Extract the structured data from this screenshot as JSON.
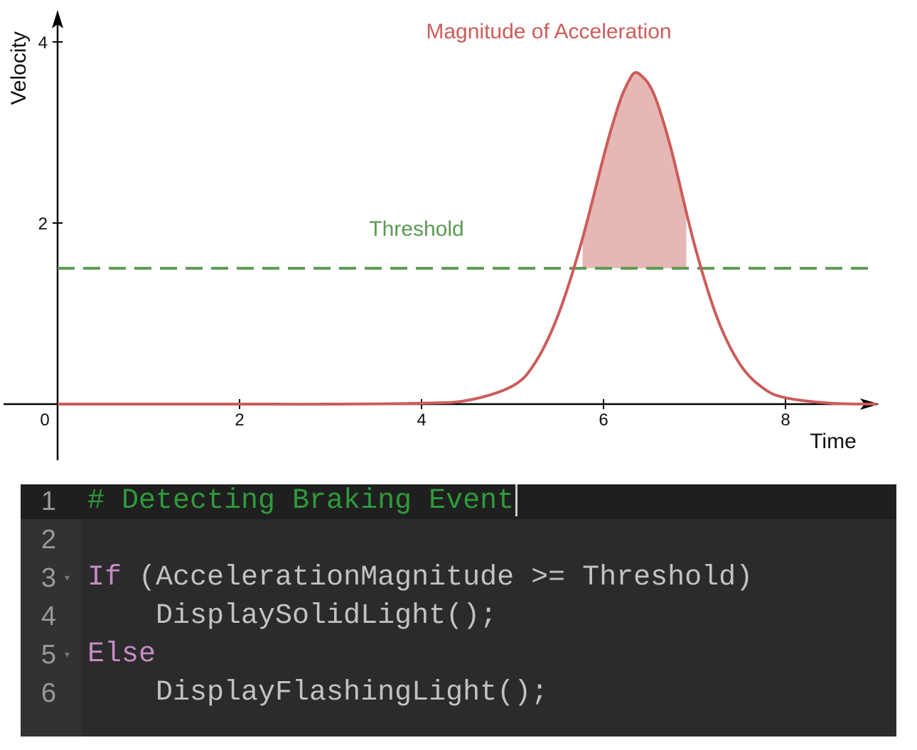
{
  "chart_data": {
    "type": "line",
    "title": "Magnitude of Acceleration",
    "xlabel": "Time",
    "ylabel": "Velocity",
    "xlim": [
      0,
      9
    ],
    "ylim": [
      -0.6,
      4.3
    ],
    "x_ticks": [
      "2",
      "4",
      "6",
      "8"
    ],
    "y_ticks": [
      "2",
      "4"
    ],
    "origin_label": "0",
    "series": [
      {
        "name": "Magnitude of Acceleration",
        "color": "#cc5c5a",
        "x": [
          0,
          1,
          2,
          3,
          4,
          4.5,
          5,
          5.25,
          5.5,
          5.75,
          6,
          6.1,
          6.2,
          6.3,
          6.35,
          6.4,
          6.5,
          6.6,
          6.75,
          7,
          7.25,
          7.5,
          7.75,
          8,
          8.5,
          9
        ],
        "y": [
          0,
          0,
          0,
          0,
          0.01,
          0.04,
          0.2,
          0.46,
          0.98,
          1.76,
          2.73,
          3.09,
          3.4,
          3.61,
          3.66,
          3.64,
          3.53,
          3.3,
          2.79,
          1.76,
          0.95,
          0.44,
          0.18,
          0.07,
          0.01,
          0
        ]
      }
    ],
    "threshold": {
      "label": "Threshold",
      "value": 1.5,
      "color": "#5a9a52"
    },
    "shaded_region": {
      "description_color": "#e5b7b5",
      "x_from": 5.77,
      "x_to": 6.91
    }
  },
  "editor": {
    "lines": [
      {
        "num": "1",
        "fold": "",
        "tokens": [
          {
            "t": "# Detecting Braking Event",
            "c": "comment"
          }
        ],
        "cursor": true
      },
      {
        "num": "2",
        "fold": "",
        "tokens": []
      },
      {
        "num": "3",
        "fold": "▾",
        "tokens": [
          {
            "t": "If",
            "c": "keyword"
          },
          {
            "t": " (AccelerationMagnitude >= Threshold)",
            "c": "plain"
          }
        ]
      },
      {
        "num": "4",
        "fold": "",
        "tokens": [
          {
            "t": "    DisplaySolidLight();",
            "c": "plain"
          }
        ]
      },
      {
        "num": "5",
        "fold": "▾",
        "tokens": [
          {
            "t": "Else",
            "c": "keyword"
          }
        ]
      },
      {
        "num": "6",
        "fold": "",
        "tokens": [
          {
            "t": "    DisplayFlashingLight();",
            "c": "plain"
          }
        ]
      }
    ]
  }
}
